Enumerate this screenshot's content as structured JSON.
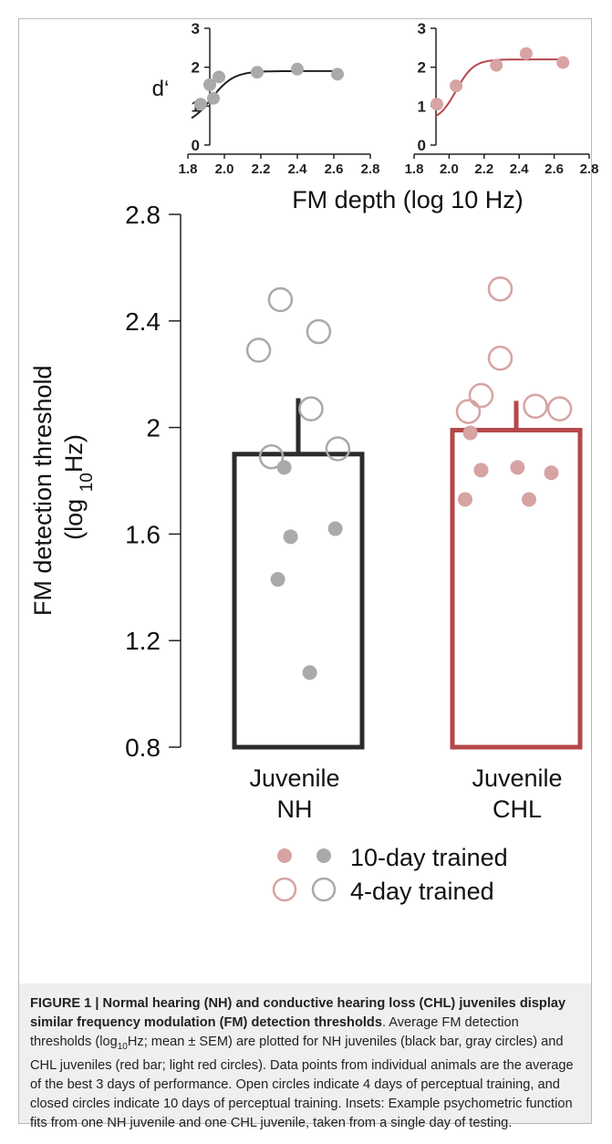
{
  "chart_data": [
    {
      "type": "scatter",
      "panel": "inset-nh",
      "ylabel": "d‘",
      "xlim": [
        1.8,
        2.8
      ],
      "ylim": [
        0,
        3
      ],
      "x_ticks": [
        "1.8",
        "2.0",
        "2.2",
        "2.4",
        "2.6",
        "2.8"
      ],
      "y_ticks": [
        "0",
        "1",
        "2",
        "3"
      ],
      "points": [
        {
          "x": 1.87,
          "y": 1.05
        },
        {
          "x": 1.92,
          "y": 1.55
        },
        {
          "x": 1.94,
          "y": 1.2
        },
        {
          "x": 1.97,
          "y": 1.75
        },
        {
          "x": 2.18,
          "y": 1.87
        },
        {
          "x": 2.4,
          "y": 1.95
        },
        {
          "x": 2.62,
          "y": 1.82
        }
      ],
      "fit": {
        "bottom": 0.5,
        "top": 1.9,
        "mid": 1.93,
        "slope": 0.06,
        "x_start": 1.82,
        "x_end": 2.62
      },
      "point_color": "#a8aaab",
      "line_color": "#222222"
    },
    {
      "type": "scatter",
      "panel": "inset-chl",
      "xlim": [
        1.8,
        2.8
      ],
      "ylim": [
        0,
        3
      ],
      "x_ticks": [
        "1.8",
        "2.0",
        "2.2",
        "2.4",
        "2.6",
        "2.8"
      ],
      "y_ticks": [
        "0",
        "1",
        "2",
        "3"
      ],
      "points": [
        {
          "x": 1.93,
          "y": 1.05
        },
        {
          "x": 2.04,
          "y": 1.52
        },
        {
          "x": 2.27,
          "y": 2.05
        },
        {
          "x": 2.44,
          "y": 2.35
        },
        {
          "x": 2.65,
          "y": 2.12
        }
      ],
      "fit": {
        "bottom": 0.6,
        "top": 2.2,
        "mid": 2.04,
        "slope": 0.05,
        "x_start": 1.92,
        "x_end": 2.65
      },
      "point_color": "#d7a3a3",
      "line_color": "#b5474a"
    },
    {
      "type": "bar",
      "panel": "main",
      "xlabel_shared_insets": "FM depth (log 10 Hz)",
      "ylabel_line1": "FM detection threshold",
      "ylabel_line2_pre": "(log ",
      "ylabel_line2_sub": "10",
      "ylabel_line2_post": "Hz)",
      "ylim": [
        0.8,
        2.8
      ],
      "y_ticks": [
        "0.8",
        "1.2",
        "1.6",
        "2",
        "2.4",
        "2.8"
      ],
      "categories": [
        {
          "line1": "Juvenile",
          "line2": "NH"
        },
        {
          "line1": "Juvenile",
          "line2": "CHL"
        }
      ],
      "bars": [
        {
          "mean": 1.9,
          "sem_top": 2.11,
          "color": "#2b2b2b"
        },
        {
          "mean": 1.99,
          "sem_top": 2.1,
          "color": "#b5474a"
        }
      ],
      "points": [
        [
          {
            "dx": -0.62,
            "y": 2.29,
            "type": "open"
          },
          {
            "dx": -0.28,
            "y": 2.48,
            "type": "open"
          },
          {
            "dx": 0.2,
            "y": 2.07,
            "type": "open"
          },
          {
            "dx": 0.32,
            "y": 2.36,
            "type": "open"
          },
          {
            "dx": -0.42,
            "y": 1.89,
            "type": "open"
          },
          {
            "dx": 0.62,
            "y": 1.92,
            "type": "open"
          },
          {
            "dx": -0.22,
            "y": 1.85,
            "type": "filled"
          },
          {
            "dx": -0.12,
            "y": 1.59,
            "type": "filled"
          },
          {
            "dx": 0.58,
            "y": 1.62,
            "type": "filled"
          },
          {
            "dx": -0.32,
            "y": 1.43,
            "type": "filled"
          },
          {
            "dx": 0.18,
            "y": 1.08,
            "type": "filled"
          }
        ],
        [
          {
            "dx": -0.25,
            "y": 2.52,
            "type": "open"
          },
          {
            "dx": -0.25,
            "y": 2.26,
            "type": "open"
          },
          {
            "dx": -0.55,
            "y": 2.12,
            "type": "open"
          },
          {
            "dx": -0.75,
            "y": 2.06,
            "type": "open"
          },
          {
            "dx": 0.3,
            "y": 2.08,
            "type": "open"
          },
          {
            "dx": 0.68,
            "y": 2.07,
            "type": "open"
          },
          {
            "dx": -0.72,
            "y": 1.98,
            "type": "filled"
          },
          {
            "dx": -0.55,
            "y": 1.84,
            "type": "filled"
          },
          {
            "dx": 0.02,
            "y": 1.85,
            "type": "filled"
          },
          {
            "dx": 0.55,
            "y": 1.83,
            "type": "filled"
          },
          {
            "dx": -0.8,
            "y": 1.73,
            "type": "filled"
          },
          {
            "dx": 0.2,
            "y": 1.73,
            "type": "filled"
          }
        ]
      ],
      "point_colors": {
        "nh_filled": "#a8aaab",
        "nh_open": "#a8aaab",
        "chl_filled": "#d7a3a3",
        "chl_open": "#d7a3a3"
      },
      "legend": [
        {
          "label": "10-day trained",
          "style": "filled"
        },
        {
          "label": "4-day trained",
          "style": "open"
        }
      ]
    }
  ],
  "caption": {
    "title": "FIGURE 1 | Normal hearing (NH) and conductive hearing loss (CHL) juveniles display similar frequency modulation (FM) detection thresholds",
    "text_1": ". Average FM detection thresholds (log",
    "text_sub": "10",
    "text_2": "Hz; mean ± SEM) are plotted for NH juveniles (black bar, gray circles) and CHL juveniles (red bar; light red circles). Data points from individual animals are the average of the best 3 days of performance. Open circles indicate 4 days of perceptual training, and closed circles indicate 10 days of perceptual training. Insets: Example psychometric function fits from one NH juvenile and one CHL juvenile, taken from a single day of testing."
  }
}
